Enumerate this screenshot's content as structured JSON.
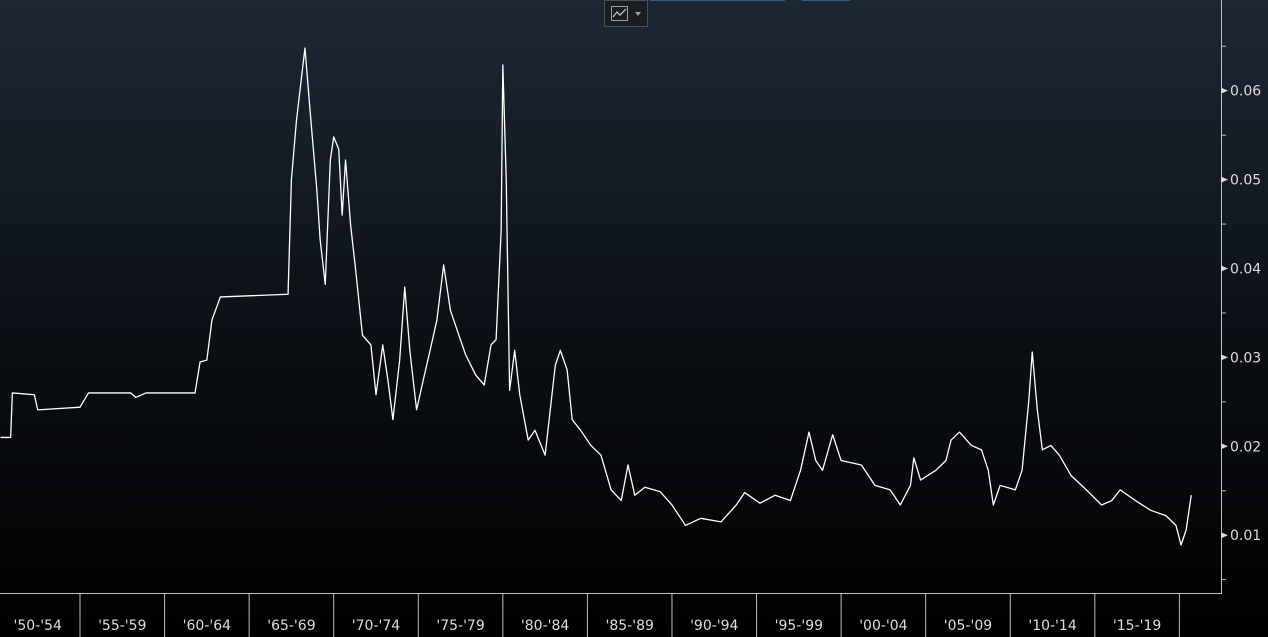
{
  "chart_data": {
    "type": "line",
    "color": "#ffffff",
    "categories": [
      "'50-'54",
      "'55-'59",
      "'60-'64",
      "'65-'69",
      "'70-'74",
      "'75-'79",
      "'80-'84",
      "'85-'89",
      "'90-'94",
      "'95-'99",
      "'00-'04",
      "'05-'09",
      "'10-'14",
      "'15-'19"
    ],
    "xbins": [
      1950,
      1955,
      1960,
      1965,
      1970,
      1975,
      1980,
      1985,
      1990,
      1995,
      2000,
      2005,
      2010,
      2015,
      2020
    ],
    "xlim": [
      1950.27,
      2022.46
    ],
    "ylim": [
      0.0035,
      0.0702
    ],
    "yticks": [
      0.01,
      0.02,
      0.03,
      0.04,
      0.05,
      0.06
    ],
    "yticks_minor": [
      0.005,
      0.015,
      0.025,
      0.035,
      0.045,
      0.055,
      0.065
    ],
    "x": [
      1950.3,
      1950.9,
      1951.0,
      1952.3,
      1952.5,
      1955.0,
      1955.5,
      1958.0,
      1958.3,
      1958.9,
      1961.8,
      1962.1,
      1962.5,
      1962.8,
      1963.3,
      1967.3,
      1967.5,
      1967.8,
      1968.3,
      1968.6,
      1969.0,
      1969.2,
      1969.5,
      1969.8,
      1970.0,
      1970.3,
      1970.5,
      1970.7,
      1971.0,
      1971.3,
      1971.7,
      1972.2,
      1972.5,
      1972.9,
      1973.2,
      1973.5,
      1973.9,
      1974.2,
      1974.5,
      1974.9,
      1975.3,
      1975.7,
      1976.1,
      1976.5,
      1976.9,
      1977.4,
      1977.8,
      1978.4,
      1978.9,
      1979.3,
      1979.6,
      1979.9,
      1980.0,
      1980.2,
      1980.4,
      1980.7,
      1981.0,
      1981.5,
      1981.9,
      1982.5,
      1983.1,
      1983.4,
      1983.8,
      1984.1,
      1984.6,
      1985.2,
      1985.8,
      1986.4,
      1987.0,
      1987.4,
      1987.8,
      1988.4,
      1989.3,
      1990.0,
      1990.8,
      1991.7,
      1992.9,
      1993.8,
      1994.3,
      1995.2,
      1996.1,
      1997.0,
      1997.6,
      1998.1,
      1998.5,
      1998.9,
      1999.5,
      2000.0,
      2001.2,
      2002.0,
      2002.9,
      2003.5,
      2004.1,
      2004.3,
      2004.7,
      2005.6,
      2006.2,
      2006.5,
      2007.0,
      2007.7,
      2008.3,
      2008.7,
      2009.0,
      2009.4,
      2010.3,
      2010.7,
      2011.1,
      2011.3,
      2011.6,
      2011.9,
      2012.4,
      2012.9,
      2013.6,
      2014.5,
      2015.4,
      2016.0,
      2016.5,
      2017.4,
      2018.3,
      2019.2,
      2019.8,
      2020.1,
      2020.4,
      2020.7
    ],
    "values": [
      0.021,
      0.021,
      0.026,
      0.0258,
      0.0241,
      0.0244,
      0.026,
      0.026,
      0.0255,
      0.026,
      0.026,
      0.0295,
      0.0297,
      0.0342,
      0.0368,
      0.0371,
      0.05,
      0.0567,
      0.0648,
      0.0578,
      0.0489,
      0.0432,
      0.0382,
      0.0522,
      0.0548,
      0.0534,
      0.046,
      0.0522,
      0.0449,
      0.0398,
      0.0325,
      0.0314,
      0.0258,
      0.0314,
      0.0275,
      0.023,
      0.0297,
      0.0379,
      0.0308,
      0.0241,
      0.0275,
      0.0308,
      0.0342,
      0.0404,
      0.0353,
      0.0325,
      0.0303,
      0.028,
      0.0269,
      0.0314,
      0.032,
      0.0443,
      0.0629,
      0.05,
      0.0263,
      0.0308,
      0.0258,
      0.0207,
      0.0218,
      0.019,
      0.0291,
      0.0308,
      0.0286,
      0.023,
      0.0218,
      0.0201,
      0.019,
      0.0151,
      0.0139,
      0.0179,
      0.0145,
      0.0154,
      0.0149,
      0.0134,
      0.0111,
      0.0119,
      0.0115,
      0.0134,
      0.0148,
      0.0136,
      0.0145,
      0.0139,
      0.0173,
      0.0216,
      0.0184,
      0.0173,
      0.0213,
      0.0184,
      0.0179,
      0.0156,
      0.0151,
      0.0134,
      0.0156,
      0.0187,
      0.0162,
      0.0173,
      0.0184,
      0.0207,
      0.0216,
      0.0201,
      0.0196,
      0.0173,
      0.0134,
      0.0156,
      0.0151,
      0.0173,
      0.0252,
      0.0306,
      0.0241,
      0.0196,
      0.0201,
      0.019,
      0.0167,
      0.0151,
      0.0134,
      0.0139,
      0.0151,
      0.0139,
      0.0128,
      0.0122,
      0.0111,
      0.0089,
      0.0106,
      0.0145
    ]
  }
}
